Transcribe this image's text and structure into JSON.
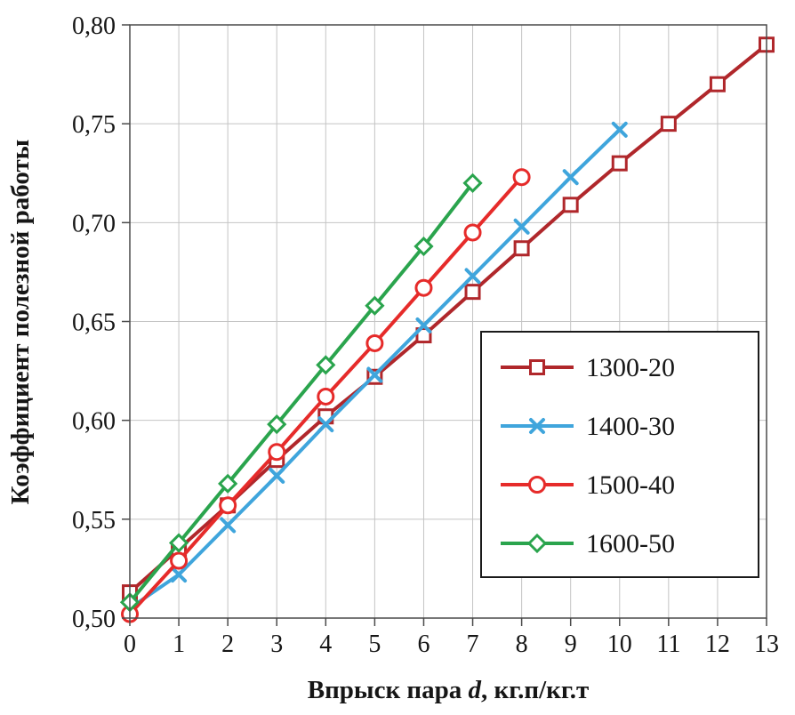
{
  "chart_data": {
    "type": "line",
    "xlabel": {
      "prefix": "Впрыск пара ",
      "italic": "d",
      "suffix": ", кг.п/кг.т"
    },
    "ylabel": "Коэффициент полезной работы",
    "xlim": [
      0,
      13
    ],
    "ylim": [
      0.5,
      0.8
    ],
    "grid": true,
    "legend_position": "inside-right",
    "x_ticks": [
      0,
      1,
      2,
      3,
      4,
      5,
      6,
      7,
      8,
      9,
      10,
      11,
      12,
      13
    ],
    "x_tick_labels": [
      "0",
      "1",
      "2",
      "3",
      "4",
      "5",
      "6",
      "7",
      "8",
      "9",
      "10",
      "11",
      "12",
      "13"
    ],
    "y_ticks": [
      0.5,
      0.55,
      0.6,
      0.65,
      0.7,
      0.75,
      0.8
    ],
    "y_tick_labels": [
      "0,50",
      "0,55",
      "0,60",
      "0,65",
      "0,70",
      "0,75",
      "0,80"
    ],
    "series": [
      {
        "name": "1300-20",
        "color": "#b0272b",
        "marker": "square",
        "x": [
          0,
          1,
          2,
          3,
          4,
          5,
          6,
          7,
          8,
          9,
          10,
          11,
          12,
          13
        ],
        "values": [
          0.513,
          0.535,
          0.557,
          0.58,
          0.602,
          0.622,
          0.643,
          0.665,
          0.687,
          0.709,
          0.73,
          0.75,
          0.77,
          0.79
        ]
      },
      {
        "name": "1400-30",
        "color": "#3fa5dc",
        "marker": "x",
        "x": [
          0,
          1,
          2,
          3,
          4,
          5,
          6,
          7,
          8,
          9,
          10
        ],
        "values": [
          0.505,
          0.522,
          0.547,
          0.572,
          0.598,
          0.623,
          0.648,
          0.673,
          0.698,
          0.723,
          0.747
        ]
      },
      {
        "name": "1500-40",
        "color": "#e62b2a",
        "marker": "circle",
        "x": [
          0,
          1,
          2,
          3,
          4,
          5,
          6,
          7,
          8
        ],
        "values": [
          0.502,
          0.529,
          0.557,
          0.584,
          0.612,
          0.639,
          0.667,
          0.695,
          0.723
        ]
      },
      {
        "name": "1600-50",
        "color": "#2aa44d",
        "marker": "diamond",
        "x": [
          0,
          1,
          2,
          3,
          4,
          5,
          6,
          7
        ],
        "values": [
          0.508,
          0.538,
          0.568,
          0.598,
          0.628,
          0.658,
          0.688,
          0.72
        ]
      }
    ]
  }
}
